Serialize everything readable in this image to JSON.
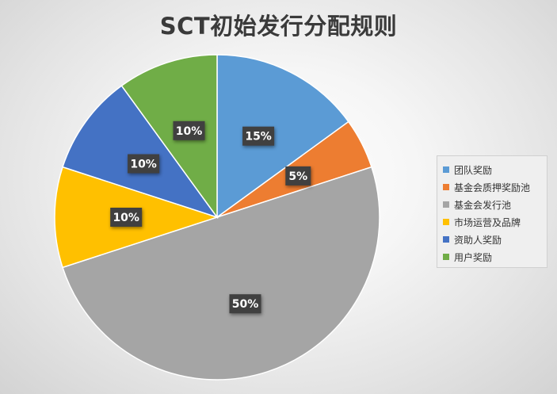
{
  "chart_data": {
    "type": "pie",
    "title": "SCT初始发行分配规则",
    "slices": [
      {
        "name": "团队奖励",
        "value": 15,
        "label": "15%",
        "color": "#5b9bd5"
      },
      {
        "name": "基金会质押奖励池",
        "value": 5,
        "label": "5%",
        "color": "#ed7d31"
      },
      {
        "name": "基金会发行池",
        "value": 50,
        "label": "50%",
        "color": "#a5a5a5"
      },
      {
        "name": "市场运营及品牌",
        "value": 10,
        "label": "10%",
        "color": "#ffc000"
      },
      {
        "name": "资助人奖励",
        "value": 10,
        "label": "10%",
        "color": "#4472c4"
      },
      {
        "name": "用户奖励",
        "value": 10,
        "label": "10%",
        "color": "#70ad47"
      }
    ],
    "legend_position": "right"
  }
}
